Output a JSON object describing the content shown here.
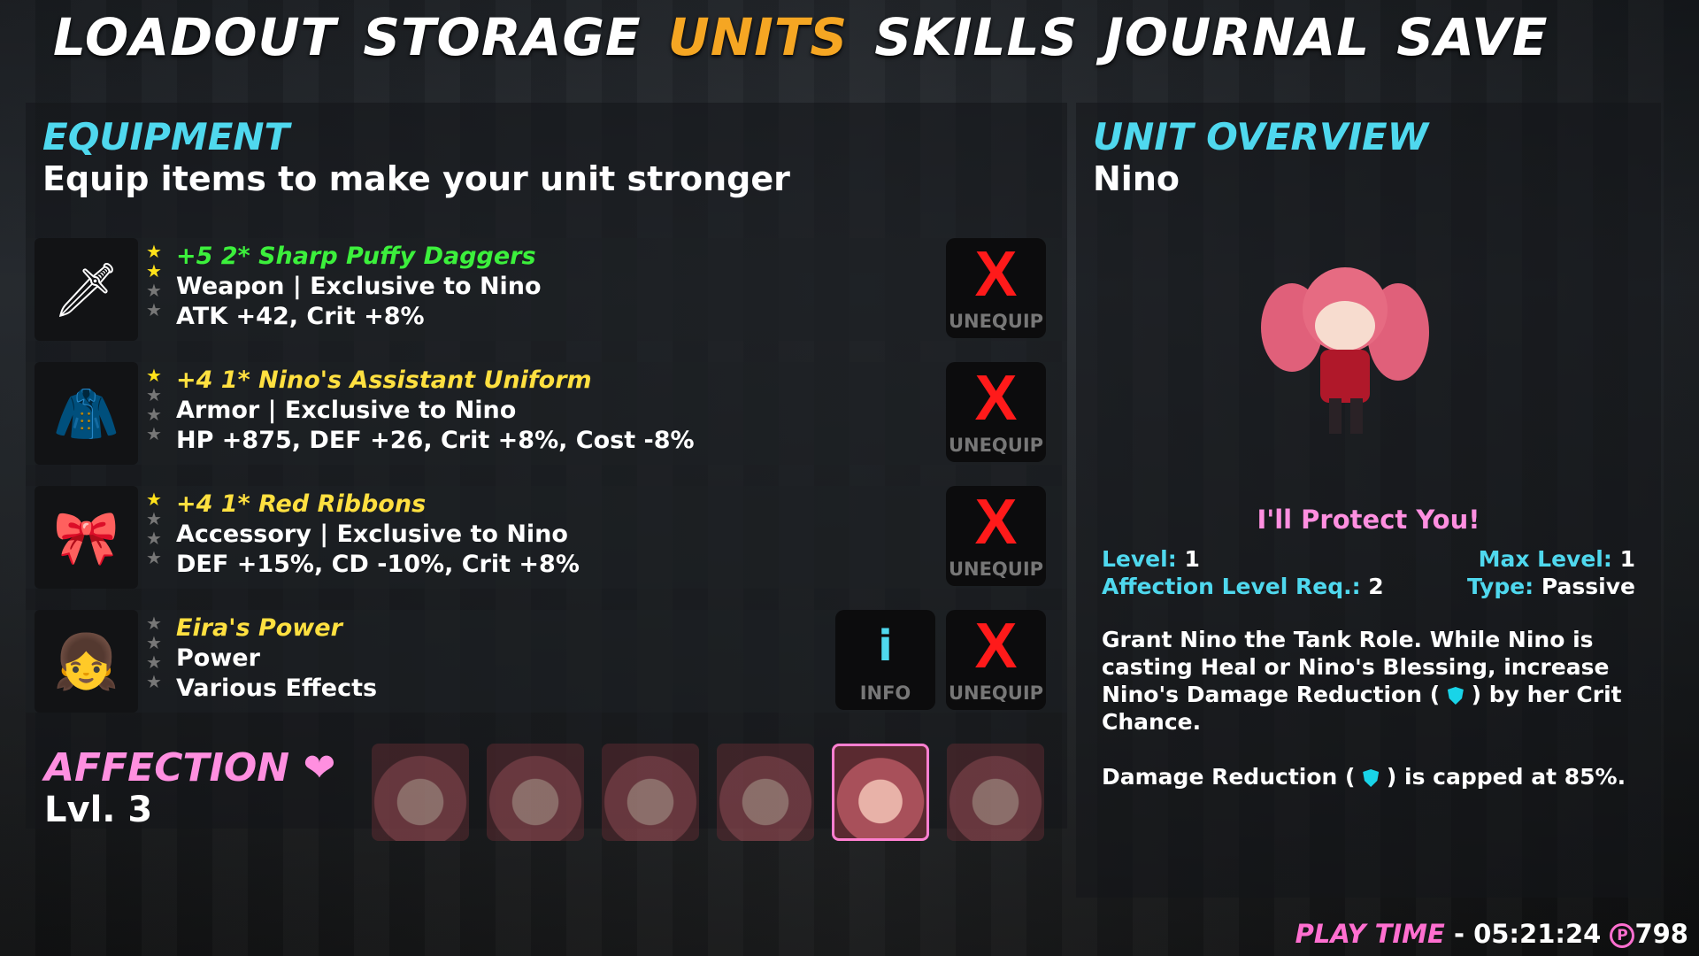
{
  "nav": {
    "items": [
      "LOADOUT",
      "STORAGE",
      "UNITS",
      "SKILLS",
      "JOURNAL",
      "SAVE"
    ],
    "active": "UNITS"
  },
  "equipment": {
    "title": "EQUIPMENT",
    "subtitle": "Equip items to make your unit stronger",
    "items": [
      {
        "name": "+5 2* Sharp Puffy Daggers",
        "name_color": "#3cf03c",
        "type": "Weapon | Exclusive to Nino",
        "stats": "ATK +42, Crit +8%",
        "stars": 2,
        "icon": "dagger-icon"
      },
      {
        "name": "+4 1* Nino's Assistant Uniform",
        "name_color": "#ffe040",
        "type": "Armor | Exclusive to Nino",
        "stats": "HP +875, DEF +26, Crit +8%, Cost -8%",
        "stars": 1,
        "icon": "uniform-icon"
      },
      {
        "name": "+4 1* Red Ribbons",
        "name_color": "#ffe040",
        "type": "Accessory | Exclusive to Nino",
        "stats": "DEF +15%, CD -10%, Crit +8%",
        "stars": 1,
        "icon": "ribbon-icon"
      },
      {
        "name": "Eira's Power",
        "name_color": "#ffe040",
        "type": "Power",
        "stats": "Various Effects",
        "stars": 0,
        "icon": "eira-portrait"
      }
    ],
    "unequip_x": "X",
    "unequip_label": "UNEQUIP",
    "info_i": "i",
    "info_label": "INFO"
  },
  "affection": {
    "title": "AFFECTION",
    "heart": "❤",
    "level": "Lvl. 3",
    "portraits_count": 6,
    "selected_index": 4
  },
  "overview": {
    "title": "UNIT OVERVIEW",
    "unit_name": "Nino",
    "skill_name": "I'll Protect You!",
    "level_label": "Level:",
    "level": "1",
    "max_level_label": "Max Level:",
    "max_level": "1",
    "aff_req_label": "Affection Level Req.:",
    "aff_req": "2",
    "type_label": "Type:",
    "type": "Passive",
    "desc1a": "Grant Nino the Tank Role. While Nino is casting Heal or Nino's Blessing, increase Nino's Damage Reduction (",
    "desc1b": ") by her Crit Chance.",
    "desc2a": "Damage Reduction (",
    "desc2b": ") is capped at 85%."
  },
  "footer": {
    "play_time_label": "PLAY TIME",
    "sep": " - ",
    "play_time": "05:21:24",
    "currency_symbol": "P",
    "currency": "798"
  }
}
